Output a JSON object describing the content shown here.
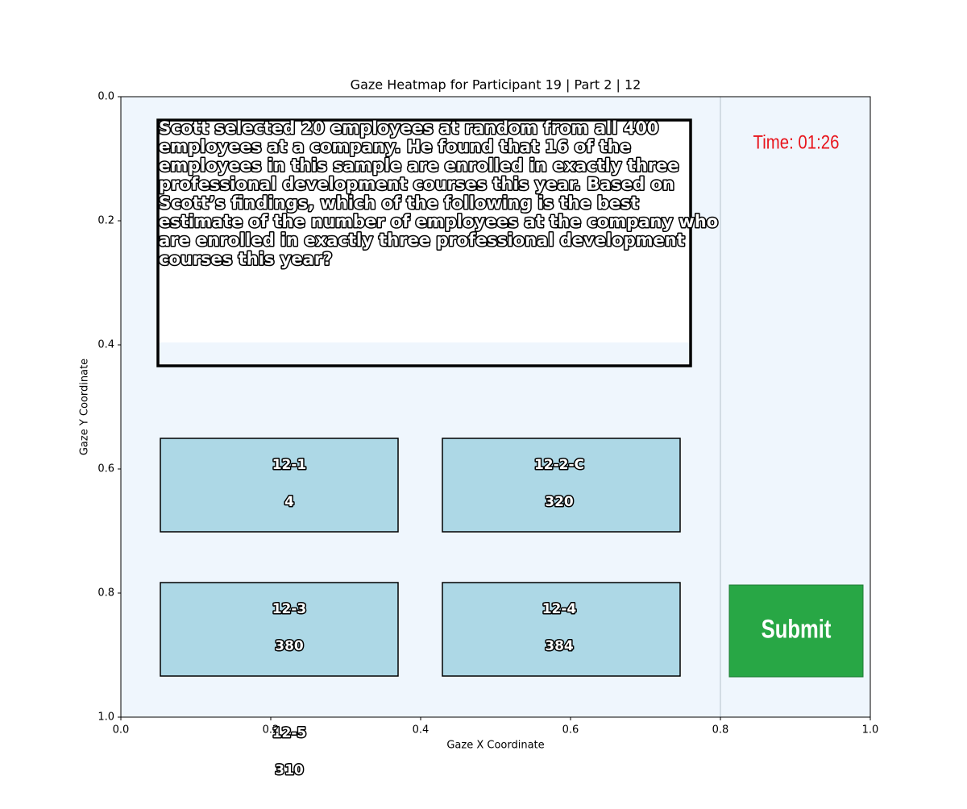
{
  "chart_data": {
    "type": "image",
    "title": "Gaze Heatmap for Participant 19 | Part 2 | 12",
    "xlabel": "Gaze X Coordinate",
    "ylabel": "Gaze Y Coordinate",
    "xlim": [
      0,
      1
    ],
    "ylim": [
      1,
      0
    ],
    "xticks": [
      {
        "value": 0,
        "label": "0.0"
      },
      {
        "value": 0.2,
        "label": "0.2"
      },
      {
        "value": 0.4,
        "label": "0.4"
      },
      {
        "value": 0.6,
        "label": "0.6"
      },
      {
        "value": 0.8,
        "label": "0.8"
      },
      {
        "value": 1,
        "label": "1.0"
      }
    ],
    "yticks": [
      {
        "value": 0,
        "label": "0.0"
      },
      {
        "value": 0.2,
        "label": "0.2"
      },
      {
        "value": 0.4,
        "label": "0.4"
      },
      {
        "value": 0.6,
        "label": "0.6"
      },
      {
        "value": 0.8,
        "label": "0.8"
      },
      {
        "value": 1,
        "label": "1.0"
      }
    ]
  },
  "screen": {
    "question": [
      "Scott selected 20 employees at random from all 400",
      "employees at a company. He found that 16 of the",
      "employees in this sample are enrolled in exactly three",
      "professional development courses this year. Based on",
      "Scott’s findings, which of the following is the best",
      "estimate of the number of employees at the company who",
      "are enrolled in exactly three professional development",
      "courses this year?"
    ],
    "timer": "Time: 01:26",
    "submit": "Submit",
    "options": [
      {
        "id": "12-1",
        "text": "4"
      },
      {
        "id": "12-2-C",
        "text": "320"
      },
      {
        "id": "12-3",
        "text": "380"
      },
      {
        "id": "12-4",
        "text": "384"
      },
      {
        "id": "12-5",
        "text": "310"
      }
    ]
  }
}
